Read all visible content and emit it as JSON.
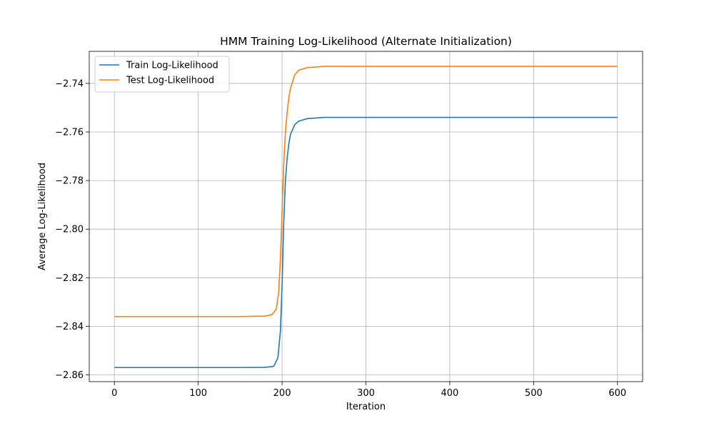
{
  "chart_data": {
    "type": "line",
    "title": "HMM Training Log-Likelihood (Alternate Initialization)",
    "xlabel": "Iteration",
    "ylabel": "Average Log-Likelihood",
    "xlim": [
      -30,
      630
    ],
    "ylim": [
      -2.8628,
      -2.7268
    ],
    "xticks": [
      0,
      100,
      200,
      300,
      400,
      500,
      600
    ],
    "xtick_labels": [
      "0",
      "100",
      "200",
      "300",
      "400",
      "500",
      "600"
    ],
    "yticks": [
      -2.86,
      -2.84,
      -2.82,
      -2.8,
      -2.78,
      -2.76,
      -2.74
    ],
    "ytick_labels": [
      "−2.86",
      "−2.84",
      "−2.82",
      "−2.80",
      "−2.78",
      "−2.76",
      "−2.74"
    ],
    "grid": true,
    "legend_position": "upper-left",
    "series": [
      {
        "name": "Train Log-Likelihood",
        "color": "#1f77b4",
        "x": [
          0,
          50,
          100,
          150,
          180,
          190,
          195,
          198,
          200,
          202,
          204,
          206,
          208,
          210,
          215,
          220,
          230,
          250,
          300,
          400,
          500,
          600
        ],
        "y": [
          -2.857,
          -2.857,
          -2.857,
          -2.857,
          -2.8569,
          -2.8565,
          -2.853,
          -2.842,
          -2.823,
          -2.797,
          -2.78,
          -2.771,
          -2.765,
          -2.761,
          -2.757,
          -2.7555,
          -2.7545,
          -2.754,
          -2.754,
          -2.754,
          -2.754,
          -2.754
        ]
      },
      {
        "name": "Test Log-Likelihood",
        "color": "#ff7f0e",
        "x": [
          0,
          50,
          100,
          150,
          180,
          188,
          193,
          196,
          198,
          200,
          202,
          204,
          206,
          208,
          210,
          215,
          220,
          230,
          250,
          300,
          400,
          500,
          600
        ],
        "y": [
          -2.836,
          -2.836,
          -2.836,
          -2.836,
          -2.8358,
          -2.8352,
          -2.833,
          -2.826,
          -2.812,
          -2.793,
          -2.773,
          -2.76,
          -2.752,
          -2.746,
          -2.742,
          -2.7365,
          -2.7345,
          -2.7335,
          -2.733,
          -2.733,
          -2.733,
          -2.733,
          -2.733
        ]
      }
    ]
  }
}
